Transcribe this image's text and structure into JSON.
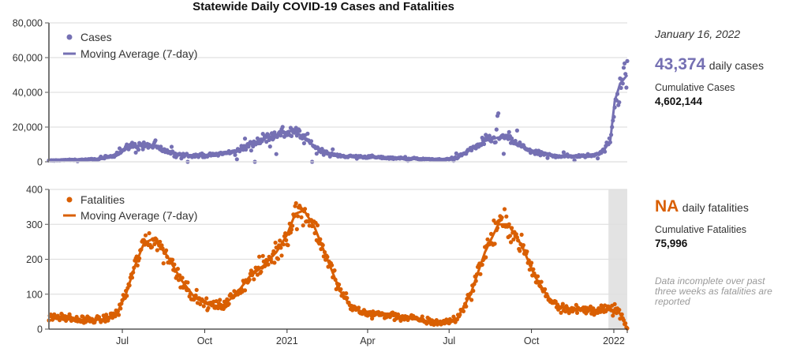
{
  "title": "Statewide Daily COVID-19 Cases and Fatalities",
  "sidebar": {
    "date": "January 16, 2022",
    "cases": {
      "value": "43,374",
      "unit": "daily cases",
      "cumulative_label": "Cumulative Cases",
      "cumulative_value": "4,602,144",
      "color": "#7570b3"
    },
    "fatalities": {
      "value": "NA",
      "unit": "daily fatalities",
      "cumulative_label": "Cumulative Fatalities",
      "cumulative_value": "75,996",
      "color": "#d95f02"
    },
    "note": [
      "Data incomplete over past",
      "three weeks as fatalities are",
      "reported"
    ]
  },
  "chart_data": [
    {
      "type": "scatter",
      "name": "cases",
      "title": "Statewide Daily COVID-19 Cases and Fatalities",
      "xlabel": "",
      "ylabel": "",
      "color": "#7570b3",
      "ylim": [
        0,
        80000
      ],
      "yticks": [
        0,
        20000,
        40000,
        60000,
        80000
      ],
      "ytick_labels": [
        "0",
        "20,000",
        "40,000",
        "60,000",
        "80,000"
      ],
      "xlim": [
        "2020-04-10",
        "2022-01-16"
      ],
      "grid": true,
      "legend": {
        "position": "top-left",
        "entries": [
          "Cases",
          "Moving Average (7-day)"
        ]
      },
      "moving_average": [
        [
          "2020-04-10",
          700
        ],
        [
          "2020-05-01",
          1000
        ],
        [
          "2020-05-20",
          1200
        ],
        [
          "2020-06-05",
          1500
        ],
        [
          "2020-06-20",
          3500
        ],
        [
          "2020-07-01",
          6500
        ],
        [
          "2020-07-10",
          9000
        ],
        [
          "2020-07-25",
          9500
        ],
        [
          "2020-08-05",
          9000
        ],
        [
          "2020-08-15",
          7000
        ],
        [
          "2020-08-25",
          5000
        ],
        [
          "2020-09-10",
          4000
        ],
        [
          "2020-09-25",
          3500
        ],
        [
          "2020-10-10",
          4000
        ],
        [
          "2020-10-25",
          5000
        ],
        [
          "2020-11-10",
          7000
        ],
        [
          "2020-11-25",
          11000
        ],
        [
          "2020-12-10",
          14000
        ],
        [
          "2020-12-25",
          16500
        ],
        [
          "2021-01-08",
          18000
        ],
        [
          "2021-01-20",
          14000
        ],
        [
          "2021-02-05",
          7000
        ],
        [
          "2021-02-20",
          4000
        ],
        [
          "2021-03-10",
          3200
        ],
        [
          "2021-04-01",
          2800
        ],
        [
          "2021-05-01",
          2200
        ],
        [
          "2021-06-01",
          1500
        ],
        [
          "2021-06-25",
          1200
        ],
        [
          "2021-07-10",
          2500
        ],
        [
          "2021-07-25",
          7000
        ],
        [
          "2021-08-10",
          12000
        ],
        [
          "2021-08-25",
          14000
        ],
        [
          "2021-09-05",
          13500
        ],
        [
          "2021-09-20",
          9000
        ],
        [
          "2021-10-05",
          5000
        ],
        [
          "2021-10-25",
          3500
        ],
        [
          "2021-11-15",
          3200
        ],
        [
          "2021-12-05",
          3500
        ],
        [
          "2021-12-20",
          6000
        ],
        [
          "2021-12-28",
          12000
        ],
        [
          "2022-01-02",
          35000
        ],
        [
          "2022-01-08",
          45000
        ],
        [
          "2022-01-16",
          50000
        ]
      ]
    },
    {
      "type": "scatter",
      "name": "fatalities",
      "color": "#d95f02",
      "ylim": [
        0,
        400
      ],
      "yticks": [
        0,
        100,
        200,
        300,
        400
      ],
      "ytick_labels": [
        "0",
        "100",
        "200",
        "300",
        "400"
      ],
      "xlim": [
        "2020-04-10",
        "2022-01-16"
      ],
      "xticks": [
        "2020-07-01",
        "2020-10-01",
        "2021-01-01",
        "2021-04-01",
        "2021-07-01",
        "2021-10-01",
        "2022-01-01"
      ],
      "xtick_labels": [
        "Jul",
        "Oct",
        "2021",
        "Apr",
        "Jul",
        "Oct",
        "2022"
      ],
      "grid": true,
      "legend": {
        "position": "top-left",
        "entries": [
          "Fatalities",
          "Moving Average (7-day)"
        ]
      },
      "incomplete_range": [
        "2021-12-26",
        "2022-01-16"
      ],
      "moving_average": [
        [
          "2020-04-10",
          35
        ],
        [
          "2020-05-01",
          32
        ],
        [
          "2020-05-20",
          25
        ],
        [
          "2020-06-10",
          28
        ],
        [
          "2020-06-25",
          45
        ],
        [
          "2020-07-05",
          100
        ],
        [
          "2020-07-15",
          180
        ],
        [
          "2020-07-25",
          245
        ],
        [
          "2020-08-05",
          260
        ],
        [
          "2020-08-20",
          210
        ],
        [
          "2020-09-05",
          140
        ],
        [
          "2020-09-20",
          90
        ],
        [
          "2020-10-05",
          70
        ],
        [
          "2020-10-20",
          65
        ],
        [
          "2020-11-05",
          100
        ],
        [
          "2020-11-20",
          150
        ],
        [
          "2020-12-05",
          180
        ],
        [
          "2020-12-20",
          220
        ],
        [
          "2021-01-01",
          270
        ],
        [
          "2021-01-10",
          330
        ],
        [
          "2021-01-20",
          340
        ],
        [
          "2021-02-01",
          290
        ],
        [
          "2021-02-15",
          200
        ],
        [
          "2021-03-01",
          110
        ],
        [
          "2021-03-15",
          60
        ],
        [
          "2021-04-01",
          45
        ],
        [
          "2021-05-01",
          38
        ],
        [
          "2021-06-01",
          25
        ],
        [
          "2021-06-25",
          18
        ],
        [
          "2021-07-10",
          30
        ],
        [
          "2021-07-25",
          100
        ],
        [
          "2021-08-10",
          220
        ],
        [
          "2021-08-25",
          300
        ],
        [
          "2021-09-05",
          300
        ],
        [
          "2021-09-20",
          240
        ],
        [
          "2021-10-05",
          150
        ],
        [
          "2021-10-20",
          90
        ],
        [
          "2021-11-01",
          65
        ],
        [
          "2021-11-20",
          55
        ],
        [
          "2021-12-10",
          55
        ],
        [
          "2022-01-05",
          55
        ],
        [
          "2022-01-10",
          35
        ],
        [
          "2022-01-16",
          0
        ]
      ]
    }
  ]
}
